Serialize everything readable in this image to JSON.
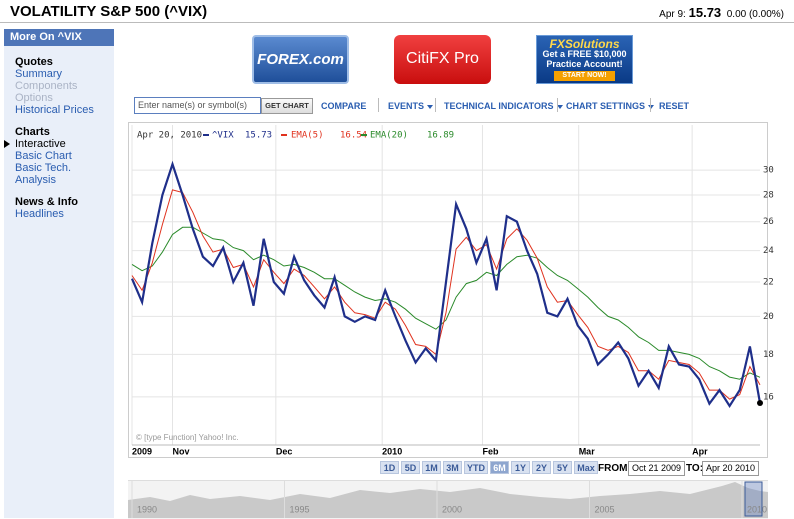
{
  "header": {
    "title": "VOLATILITY S&P 500 (^VIX)",
    "date": "Apr 9:",
    "price": "15.73",
    "change": "0.00 (0.00%)"
  },
  "sidebar": {
    "heading": "More On ^VIX",
    "sections": [
      {
        "title": "Quotes",
        "links": [
          "Summary",
          "Components",
          "Options",
          "Historical Prices"
        ]
      },
      {
        "title": "Charts",
        "links": [
          "Interactive",
          "Basic Chart",
          "Basic Tech. Analysis"
        ]
      },
      {
        "title": "News & Info",
        "links": [
          "Headlines"
        ]
      }
    ]
  },
  "ads": {
    "forex": "FOREX.com",
    "citi": "CitiFX Pro",
    "fxs_brand": "FXSolutions",
    "fxs_offer": "Get a FREE $10,000 Practice Account!",
    "fxs_cta": "START NOW!"
  },
  "toolbar": {
    "search_placeholder": "Enter name(s) or symbol(s)",
    "get_chart": "GET CHART",
    "compare": "COMPARE",
    "menus": [
      "EVENTS",
      "TECHNICAL INDICATORS",
      "CHART SETTINGS"
    ],
    "reset": "RESET"
  },
  "range": {
    "buttons": [
      "1D",
      "5D",
      "1M",
      "3M",
      "YTD",
      "6M",
      "1Y",
      "2Y",
      "5Y",
      "Max"
    ],
    "selected": 5,
    "from_label": "FROM:",
    "from": "Oct 21 2009",
    "to_label": "TO:",
    "to": "Apr 20 2010"
  },
  "overview": {
    "xticks": [
      "1990",
      "1995",
      "2000",
      "2005",
      "2010"
    ]
  },
  "chart_data": {
    "type": "line",
    "date": "Apr 20, 2010",
    "copyright": "© [type Function] Yahoo! Inc.",
    "yscale": "log",
    "ylim": [
      14,
      34
    ],
    "yticks": [
      16,
      18,
      20,
      22,
      24,
      26,
      28,
      30
    ],
    "xlim": [
      0,
      62
    ],
    "xticks": [
      {
        "value": 0,
        "label": "2009"
      },
      {
        "value": 4,
        "label": "Nov"
      },
      {
        "value": 14.2,
        "label": "Dec"
      },
      {
        "value": 24.7,
        "label": "2010"
      },
      {
        "value": 34.6,
        "label": "Feb"
      },
      {
        "value": 44.1,
        "label": "Mar"
      },
      {
        "value": 55.3,
        "label": "Apr"
      }
    ],
    "grid": true,
    "series": [
      {
        "name": "^VIX",
        "color": "#1f2f8a",
        "values": [
          22.2,
          20.8,
          24.5,
          28.0,
          30.5,
          28.0,
          25.5,
          23.6,
          23.0,
          24.2,
          22.0,
          23.2,
          20.6,
          24.8,
          22.0,
          21.3,
          23.6,
          22.1,
          21.2,
          20.5,
          22.3,
          20.0,
          19.7,
          20.0,
          19.8,
          21.5,
          20.0,
          18.7,
          17.6,
          18.3,
          17.7,
          22.0,
          27.3,
          25.5,
          23.2,
          24.8,
          21.5,
          26.4,
          26.0,
          24.0,
          22.5,
          20.2,
          20.0,
          21.0,
          19.5,
          18.8,
          17.5,
          18.0,
          18.6,
          17.8,
          16.5,
          17.2,
          16.4,
          18.4,
          17.5,
          17.4,
          16.8,
          15.7,
          16.3,
          15.6,
          16.3,
          18.4,
          15.73
        ]
      },
      {
        "name": "EMA(5)",
        "color": "#e0321e",
        "values": [
          22.4,
          21.5,
          23.2,
          25.8,
          28.4,
          28.2,
          26.7,
          25.0,
          23.9,
          24.1,
          22.9,
          23.1,
          21.7,
          23.4,
          22.6,
          21.9,
          22.8,
          22.4,
          21.7,
          21.0,
          21.7,
          20.8,
          20.2,
          20.1,
          19.9,
          20.8,
          20.4,
          19.5,
          18.5,
          18.4,
          18.0,
          20.2,
          24.1,
          24.9,
          24.0,
          24.4,
          22.8,
          24.8,
          25.5,
          24.7,
          23.5,
          21.7,
          20.8,
          20.9,
          20.1,
          19.4,
          18.4,
          18.2,
          18.4,
          18.1,
          17.2,
          17.2,
          16.8,
          17.7,
          17.6,
          17.5,
          17.1,
          16.3,
          16.3,
          15.9,
          16.1,
          17.4,
          16.54
        ]
      },
      {
        "name": "EMA(20)",
        "color": "#2a8a2a",
        "values": [
          23.1,
          22.7,
          23.0,
          23.9,
          25.1,
          25.6,
          25.6,
          25.2,
          24.8,
          24.7,
          24.2,
          24.0,
          23.4,
          23.7,
          23.4,
          23.0,
          23.1,
          22.9,
          22.6,
          22.2,
          22.2,
          21.8,
          21.4,
          21.1,
          20.9,
          21.0,
          20.8,
          20.4,
          19.9,
          19.6,
          19.3,
          19.8,
          21.1,
          21.9,
          22.1,
          22.6,
          22.4,
          23.1,
          23.6,
          23.7,
          23.5,
          22.9,
          22.4,
          22.1,
          21.6,
          21.1,
          20.5,
          20.0,
          19.8,
          19.4,
          18.9,
          18.6,
          18.2,
          18.2,
          18.1,
          18.0,
          17.8,
          17.4,
          17.2,
          16.9,
          16.8,
          17.1,
          16.89
        ]
      }
    ]
  }
}
